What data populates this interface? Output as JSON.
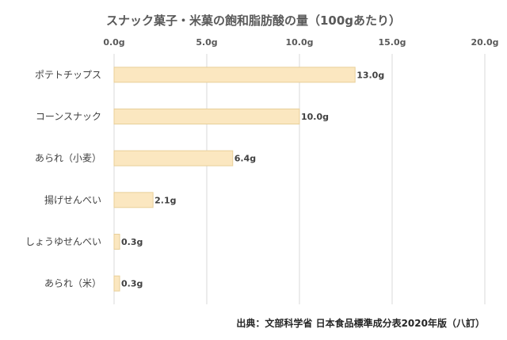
{
  "chart_data": {
    "type": "bar",
    "orientation": "horizontal",
    "title": "スナック菓子・米菓の飽和脂肪酸の量（100gあたり）",
    "categories": [
      "ポテトチップス",
      "コーンスナック",
      "あられ（小麦）",
      "揚げせんべい",
      "しょうゆせんべい",
      "あられ（米）"
    ],
    "values": [
      13.0,
      10.0,
      6.4,
      2.1,
      0.3,
      0.3
    ],
    "value_labels": [
      "13.0g",
      "10.0g",
      "6.4g",
      "2.1g",
      "0.3g",
      "0.3g"
    ],
    "xlim": [
      0,
      20
    ],
    "xticks": [
      0,
      5,
      10,
      15,
      20
    ],
    "xtick_labels": [
      "0.0g",
      "5.0g",
      "10.0g",
      "15.0g",
      "20.0g"
    ],
    "x_axis_position": "top",
    "grid": true,
    "legend": "none",
    "bar_color": "#fbe7c0",
    "bar_stroke": "#e8cf98",
    "grid_color": "#d9d9d9"
  },
  "source": "出典：文部科学省 日本食品標準成分表2020年版（八訂）"
}
